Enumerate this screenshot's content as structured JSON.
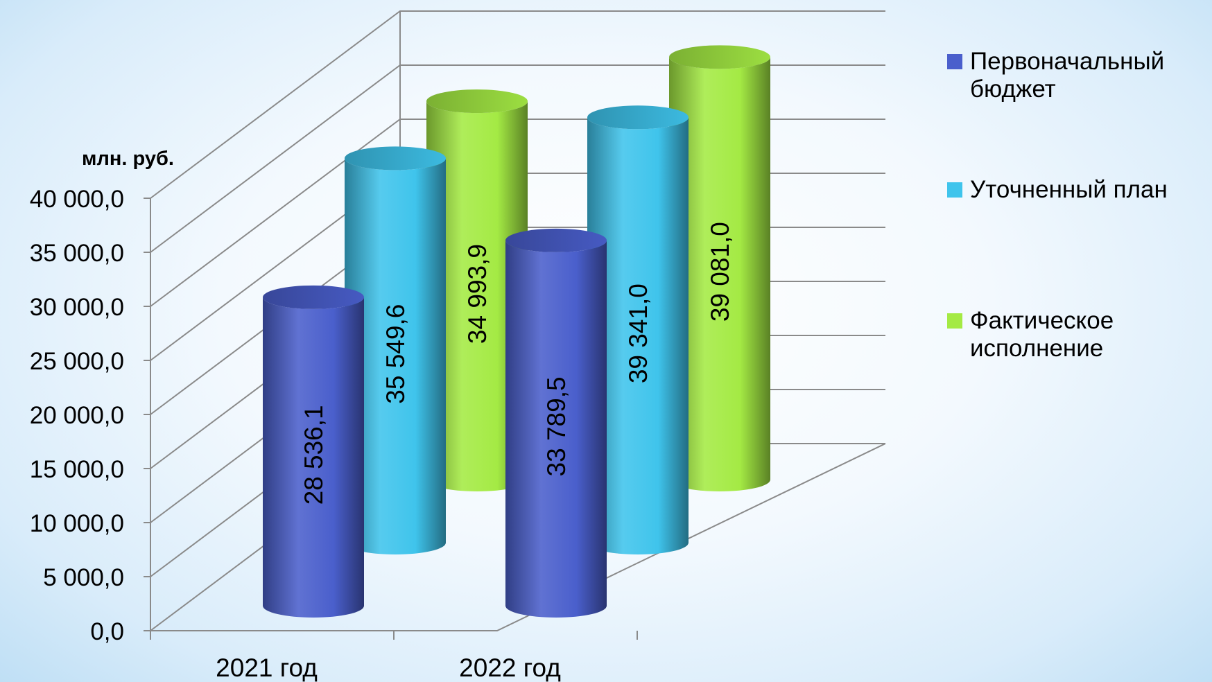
{
  "chart_data": {
    "type": "bar",
    "style": "3d-cylinder",
    "ylabel": "млн. руб.",
    "categories": [
      "2021 год",
      "2022 год"
    ],
    "ylim": [
      0,
      40000
    ],
    "ytick_values": [
      0,
      5000,
      10000,
      15000,
      20000,
      25000,
      30000,
      35000,
      40000
    ],
    "ytick_labels": [
      "0,0",
      "5 000,0",
      "10 000,0",
      "15 000,0",
      "20 000,0",
      "25 000,0",
      "30 000,0",
      "35 000,0",
      "40 000,0"
    ],
    "grid": true,
    "legend_position": "right",
    "series": [
      {
        "name": "Первоначальный бюджет",
        "legend_lines": [
          "Первоначальный",
          "бюджет"
        ],
        "color": "#4a5fcc",
        "values": [
          28536.1,
          33789.5
        ],
        "labels": [
          "28 536,1",
          "33 789,5"
        ]
      },
      {
        "name": "Уточненный план",
        "legend_lines": [
          "Уточненный план"
        ],
        "color": "#3fc4ec",
        "values": [
          35549.6,
          39341.0
        ],
        "labels": [
          "35 549,6",
          "39 341,0"
        ]
      },
      {
        "name": "Фактическое исполнение",
        "legend_lines": [
          "Фактическое",
          "исполнение"
        ],
        "color": "#a4ea44",
        "values": [
          34993.9,
          39081.0
        ],
        "labels": [
          "34 993,9",
          "39 081,0"
        ]
      }
    ]
  }
}
